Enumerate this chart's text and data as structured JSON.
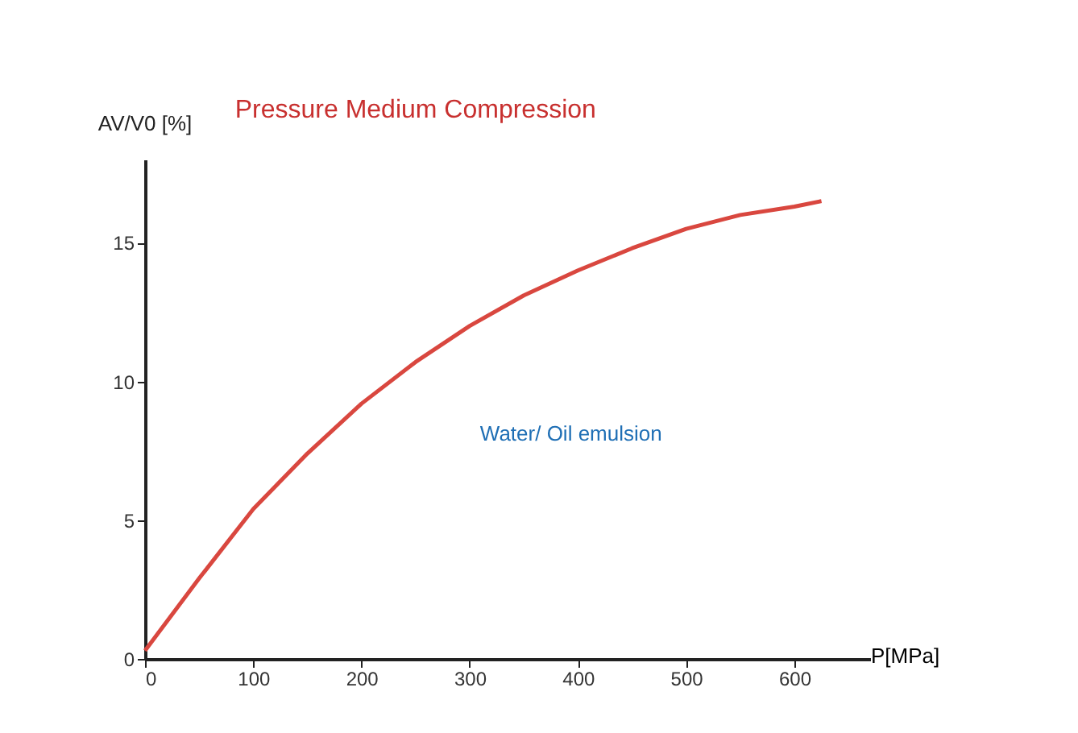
{
  "chart_data": {
    "type": "line",
    "title": "Pressure Medium Compression",
    "xlabel": "P[MPa]",
    "ylabel": "AV/V0 [%]",
    "xlim": [
      0,
      670
    ],
    "ylim": [
      0,
      18
    ],
    "xticks": [
      0,
      100,
      200,
      300,
      400,
      500,
      600
    ],
    "yticks": [
      0,
      5,
      10,
      15
    ],
    "grid": false,
    "marker": "none",
    "line_style": "solid",
    "series": [
      {
        "name": "Water/ Oil emulsion",
        "color": "#d9473f",
        "x": [
          0,
          50,
          100,
          150,
          200,
          250,
          300,
          350,
          400,
          450,
          500,
          550,
          600,
          625
        ],
        "values": [
          0.3,
          2.9,
          5.4,
          7.4,
          9.2,
          10.7,
          12.0,
          13.1,
          14.0,
          14.8,
          15.5,
          16.0,
          16.3,
          16.5
        ]
      }
    ]
  }
}
